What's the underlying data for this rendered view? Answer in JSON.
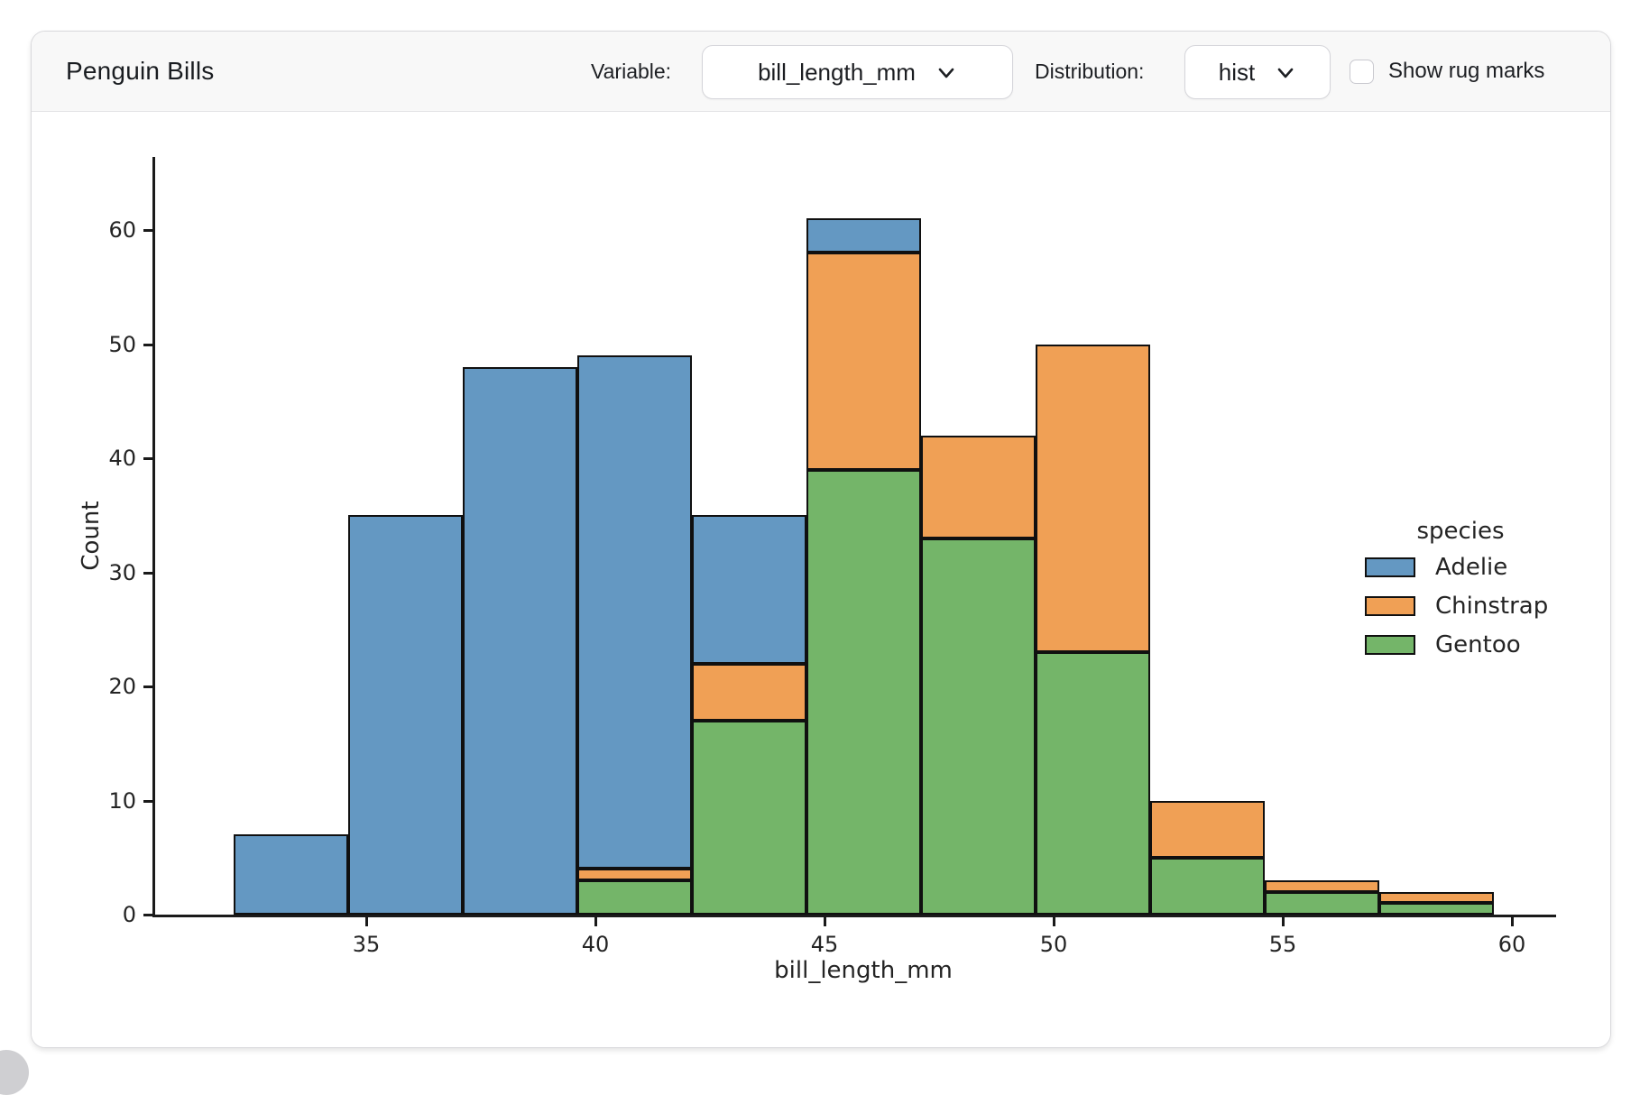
{
  "header": {
    "title": "Penguin Bills",
    "variable_label": "Variable:",
    "variable_value": "bill_length_mm",
    "distribution_label": "Distribution:",
    "distribution_value": "hist",
    "rug_label": "Show rug marks",
    "rug_checked": false
  },
  "chart_data": {
    "type": "bar",
    "subtype": "stacked-histogram",
    "title": "",
    "xlabel": "bill_length_mm",
    "ylabel": "Count",
    "bin_width": 2.5,
    "bin_edges": [
      32.1,
      34.6,
      37.1,
      39.6,
      42.1,
      44.6,
      47.1,
      49.6,
      52.1,
      54.6,
      57.1,
      59.6
    ],
    "series": [
      {
        "name": "Gentoo",
        "color": "#74b569",
        "stack_position": "bottom",
        "values": [
          0,
          0,
          0,
          3,
          17,
          39,
          33,
          23,
          5,
          2,
          1
        ]
      },
      {
        "name": "Chinstrap",
        "color": "#f0a055",
        "stack_position": "middle",
        "values": [
          0,
          0,
          0,
          1,
          5,
          19,
          9,
          27,
          5,
          1,
          1
        ]
      },
      {
        "name": "Adelie",
        "color": "#6498c2",
        "stack_position": "top",
        "values": [
          7,
          35,
          48,
          45,
          13,
          3,
          0,
          0,
          0,
          0,
          0
        ]
      }
    ],
    "bin_totals": [
      7,
      35,
      48,
      49,
      35,
      61,
      42,
      50,
      10,
      3,
      2
    ],
    "x_ticks": [
      35,
      40,
      45,
      50,
      55,
      60
    ],
    "y_ticks": [
      0,
      10,
      20,
      30,
      40,
      50,
      60
    ],
    "xlim": [
      31.4,
      61.5
    ],
    "ylim": [
      0,
      64
    ],
    "grid": false,
    "edge_color": "#101010",
    "spine_color": "#1a1a1a",
    "legend": {
      "title": "species",
      "position": "center-right",
      "entries": [
        {
          "label": "Adelie",
          "color": "#6498c2"
        },
        {
          "label": "Chinstrap",
          "color": "#f0a055"
        },
        {
          "label": "Gentoo",
          "color": "#74b569"
        }
      ]
    }
  }
}
